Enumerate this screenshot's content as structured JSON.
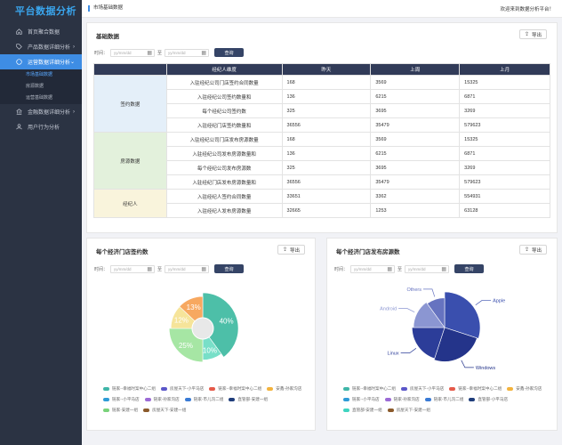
{
  "sidebar": {
    "brand": "平台数据分析",
    "items": [
      {
        "label": "首页聚合数据",
        "icon": "home-icon"
      },
      {
        "label": "产品数据详细分析",
        "icon": "tag-icon"
      },
      {
        "label": "运营数据详细分析",
        "icon": "circle-icon"
      },
      {
        "label": "金融数据详细分析",
        "icon": "bank-icon"
      },
      {
        "label": "用户行为分析",
        "icon": "user-icon"
      }
    ],
    "sub_items": [
      "市场基础数据",
      "房源数据",
      "运营基础数据"
    ]
  },
  "topbar": {
    "crumb": "市场基础数据",
    "welcome": "欢迎来到数据分析平台！"
  },
  "basic": {
    "title": "基础数据",
    "export": "导出",
    "filter": {
      "time_label": "时间：",
      "placeholder": "yy/mm/dd",
      "to": "至",
      "query": "查询"
    },
    "columns": [
      "",
      "经纪人维度",
      "昨天",
      "上周",
      "上月"
    ],
    "groups": [
      {
        "name": "签约数据",
        "rows": [
          [
            "入驻经纪公司门店签约合同数量",
            "168",
            "3569",
            "15325"
          ],
          [
            "入驻经纪公司签约数量和",
            "136",
            "6215",
            "6871"
          ],
          [
            "每个经纪公司签约数",
            "325",
            "3695",
            "3269"
          ],
          [
            "入驻经纪门店签约数量和",
            "36556",
            "35479",
            "579623"
          ]
        ]
      },
      {
        "name": "房源数据",
        "rows": [
          [
            "入驻经纪公司门店发布房源数量",
            "168",
            "3569",
            "15325"
          ],
          [
            "入驻经纪公司发布房源数量和",
            "136",
            "6215",
            "6871"
          ],
          [
            "每个经纪公司发布房源数",
            "325",
            "3695",
            "3269"
          ],
          [
            "入驻经纪门店发布房源数量和",
            "36556",
            "35479",
            "579623"
          ]
        ]
      },
      {
        "name": "经纪人",
        "rows": [
          [
            "入驻经纪人签约合同数量",
            "33651",
            "3362",
            "554931"
          ],
          [
            "入驻经纪人发布房源数量",
            "32665",
            "1253",
            "63128"
          ]
        ]
      }
    ]
  },
  "chart_left": {
    "title": "每个经济门店签约数",
    "export": "导出",
    "filter": {
      "time_label": "时间：",
      "placeholder": "yy/mm/dd",
      "to": "至",
      "query": "查询"
    },
    "legend": [
      {
        "name": "链家--幸福时案中心二组",
        "color": "#3fb6a8"
      },
      {
        "name": "房屋天下-小平马店",
        "color": "#5b57c9"
      },
      {
        "name": "链家--幸福时案中心二组",
        "color": "#e55a4a"
      },
      {
        "name": "安鑫-孙家沟店",
        "color": "#f3b33d"
      },
      {
        "name": "链家--小平马店",
        "color": "#2e9bd6"
      },
      {
        "name": "链家-孙家沟店",
        "color": "#9c6bd6"
      },
      {
        "name": "链家-市儿沟二组",
        "color": "#3a7bd5"
      },
      {
        "name": "直管部-安建一组",
        "color": "#1f3d7a"
      },
      {
        "name": "链家-安建一组",
        "color": "#79d27a"
      },
      {
        "name": "房屋天下-安建一组",
        "color": "#8b5a2b"
      }
    ]
  },
  "chart_right": {
    "title": "每个经济门店发布房源数",
    "export": "导出",
    "filter": {
      "time_label": "时间：",
      "placeholder": "yy/mm/dd",
      "to": "至",
      "query": "查询"
    },
    "legend": [
      {
        "name": "链家--幸福时案中心二组",
        "color": "#3fb6a8"
      },
      {
        "name": "房屋天下-小平马店",
        "color": "#5b57c9"
      },
      {
        "name": "链家--幸福时案中心二组",
        "color": "#e55a4a"
      },
      {
        "name": "安鑫-孙家沟店",
        "color": "#f3b33d"
      },
      {
        "name": "链家--小平马店",
        "color": "#2e9bd6"
      },
      {
        "name": "链家-孙家沟店",
        "color": "#9c6bd6"
      },
      {
        "name": "链家-市儿沟二组",
        "color": "#3a7bd5"
      },
      {
        "name": "直管部-小平马店",
        "color": "#1f3d7a"
      },
      {
        "name": "直管部-安建一组",
        "color": "#3fd4c0"
      },
      {
        "name": "房屋天下-安建一组",
        "color": "#8b5a2b"
      }
    ]
  },
  "chart_data": [
    {
      "type": "pie",
      "subtype": "rose-donut",
      "slices": [
        {
          "label": "40%",
          "value": 40,
          "color": "#4dbfa8"
        },
        {
          "label": "10%",
          "value": 10,
          "color": "#78dfc8"
        },
        {
          "label": "25%",
          "value": 25,
          "color": "#a6e6a4"
        },
        {
          "label": "12%",
          "value": 12,
          "color": "#f6e49a"
        },
        {
          "label": "13%",
          "value": 13,
          "color": "#f7a860"
        }
      ]
    },
    {
      "type": "pie",
      "subtype": "rose",
      "slices": [
        {
          "label": "Apple",
          "value": 30,
          "color": "#3a4fae"
        },
        {
          "label": "Windows",
          "value": 25,
          "color": "#24348a"
        },
        {
          "label": "Linux",
          "value": 20,
          "color": "#2c3d99"
        },
        {
          "label": "Android",
          "value": 15,
          "color": "#8b96d2"
        },
        {
          "label": "Others",
          "value": 10,
          "color": "#6673c0"
        }
      ]
    }
  ]
}
